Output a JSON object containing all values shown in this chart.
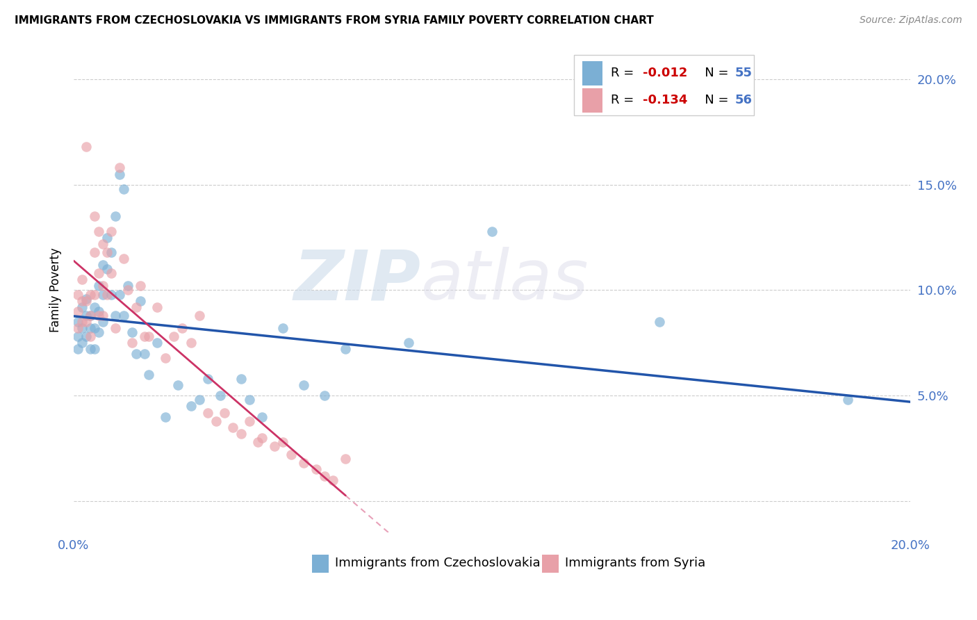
{
  "title": "IMMIGRANTS FROM CZECHOSLOVAKIA VS IMMIGRANTS FROM SYRIA FAMILY POVERTY CORRELATION CHART",
  "source": "Source: ZipAtlas.com",
  "ylabel": "Family Poverty",
  "xlim": [
    0.0,
    0.2
  ],
  "ylim": [
    -0.015,
    0.215
  ],
  "color_czech": "#7bafd4",
  "color_syria": "#e8a0a8",
  "color_czech_line": "#2255aa",
  "color_syria_line": "#cc3366",
  "color_syria_dash": "#e8a0b8",
  "watermark_text": "ZIPatlas",
  "legend_r1": "-0.012",
  "legend_n1": "55",
  "legend_r2": "-0.134",
  "legend_n2": "56",
  "czech_x": [
    0.001,
    0.001,
    0.001,
    0.002,
    0.002,
    0.002,
    0.003,
    0.003,
    0.003,
    0.004,
    0.004,
    0.004,
    0.005,
    0.005,
    0.005,
    0.006,
    0.006,
    0.006,
    0.007,
    0.007,
    0.007,
    0.008,
    0.008,
    0.009,
    0.009,
    0.01,
    0.01,
    0.011,
    0.011,
    0.012,
    0.012,
    0.013,
    0.014,
    0.015,
    0.016,
    0.017,
    0.018,
    0.02,
    0.022,
    0.025,
    0.028,
    0.03,
    0.032,
    0.035,
    0.04,
    0.042,
    0.045,
    0.05,
    0.055,
    0.06,
    0.065,
    0.08,
    0.1,
    0.14,
    0.185
  ],
  "czech_y": [
    0.085,
    0.078,
    0.072,
    0.092,
    0.082,
    0.075,
    0.096,
    0.088,
    0.078,
    0.088,
    0.082,
    0.072,
    0.092,
    0.082,
    0.072,
    0.102,
    0.09,
    0.08,
    0.112,
    0.098,
    0.085,
    0.125,
    0.11,
    0.118,
    0.098,
    0.135,
    0.088,
    0.155,
    0.098,
    0.148,
    0.088,
    0.102,
    0.08,
    0.07,
    0.095,
    0.07,
    0.06,
    0.075,
    0.04,
    0.055,
    0.045,
    0.048,
    0.058,
    0.05,
    0.058,
    0.048,
    0.04,
    0.082,
    0.055,
    0.05,
    0.072,
    0.075,
    0.128,
    0.085,
    0.048
  ],
  "syria_x": [
    0.001,
    0.001,
    0.001,
    0.002,
    0.002,
    0.002,
    0.003,
    0.003,
    0.003,
    0.004,
    0.004,
    0.004,
    0.005,
    0.005,
    0.005,
    0.006,
    0.006,
    0.006,
    0.007,
    0.007,
    0.007,
    0.008,
    0.008,
    0.009,
    0.009,
    0.01,
    0.011,
    0.012,
    0.013,
    0.014,
    0.015,
    0.016,
    0.017,
    0.018,
    0.02,
    0.022,
    0.024,
    0.026,
    0.028,
    0.03,
    0.032,
    0.034,
    0.036,
    0.038,
    0.04,
    0.042,
    0.044,
    0.045,
    0.048,
    0.05,
    0.052,
    0.055,
    0.058,
    0.06,
    0.062,
    0.065
  ],
  "syria_y": [
    0.098,
    0.09,
    0.082,
    0.105,
    0.095,
    0.085,
    0.168,
    0.095,
    0.085,
    0.098,
    0.088,
    0.078,
    0.135,
    0.118,
    0.098,
    0.128,
    0.108,
    0.088,
    0.122,
    0.102,
    0.088,
    0.118,
    0.098,
    0.128,
    0.108,
    0.082,
    0.158,
    0.115,
    0.1,
    0.075,
    0.092,
    0.102,
    0.078,
    0.078,
    0.092,
    0.068,
    0.078,
    0.082,
    0.075,
    0.088,
    0.042,
    0.038,
    0.042,
    0.035,
    0.032,
    0.038,
    0.028,
    0.03,
    0.026,
    0.028,
    0.022,
    0.018,
    0.015,
    0.012,
    0.01,
    0.02
  ]
}
